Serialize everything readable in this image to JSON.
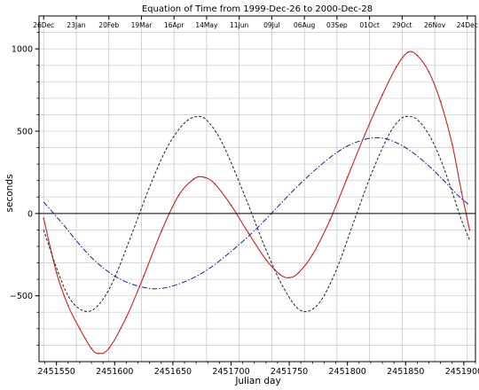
{
  "chart_data": {
    "type": "line",
    "title": "Equation of Time from 1999-Dec-26 to 2000-Dec-28",
    "xlabel": "Julian day",
    "ylabel": "seconds",
    "xlim": [
      2451535,
      2451910
    ],
    "ylim": [
      -900,
      1200
    ],
    "grid": true,
    "x_ticks": [
      2451550,
      2451600,
      2451650,
      2451700,
      2451750,
      2451800,
      2451850,
      2451900
    ],
    "x_tick_labels": [
      "2451550",
      "2451600",
      "2451650",
      "2451700",
      "2451750",
      "2451800",
      "2451850",
      "2451900"
    ],
    "y_ticks": [
      -500,
      0,
      500,
      1000
    ],
    "y_tick_labels": [
      "−500",
      "0",
      "500",
      "1000"
    ],
    "top_date_ticks": [
      {
        "x": 2451539,
        "label": "26Dec"
      },
      {
        "x": 2451567,
        "label": "23Jan"
      },
      {
        "x": 2451595,
        "label": "20Feb"
      },
      {
        "x": 2451623,
        "label": "19Mar"
      },
      {
        "x": 2451651,
        "label": "16Apr"
      },
      {
        "x": 2451679,
        "label": "14May"
      },
      {
        "x": 2451707,
        "label": "11Jun"
      },
      {
        "x": 2451735,
        "label": "09Jul"
      },
      {
        "x": 2451763,
        "label": "06Aug"
      },
      {
        "x": 2451791,
        "label": "03Sep"
      },
      {
        "x": 2451819,
        "label": "01Oct"
      },
      {
        "x": 2451847,
        "label": "29Oct"
      },
      {
        "x": 2451875,
        "label": "26Nov"
      },
      {
        "x": 2451903,
        "label": "24Dec"
      }
    ],
    "series": [
      {
        "color": "#cc2222",
        "style": "solid",
        "x": [
          2451539,
          2451550,
          2451560,
          2451570,
          2451580,
          2451586,
          2451595,
          2451610,
          2451625,
          2451640,
          2451655,
          2451668,
          2451677,
          2451686,
          2451700,
          2451715,
          2451730,
          2451742,
          2451750,
          2451758,
          2451770,
          2451785,
          2451800,
          2451815,
          2451830,
          2451842,
          2451852,
          2451860,
          2451870,
          2451880,
          2451890,
          2451898,
          2451905
        ],
        "y": [
          -30,
          -360,
          -560,
          -700,
          -820,
          -850,
          -820,
          -630,
          -380,
          -110,
          110,
          210,
          220,
          180,
          50,
          -120,
          -280,
          -370,
          -390,
          -360,
          -250,
          -40,
          220,
          480,
          720,
          890,
          980,
          960,
          860,
          680,
          420,
          130,
          -100
        ]
      },
      {
        "color": "#333333",
        "style": "dashed",
        "x": [
          2451539,
          2451550,
          2451560,
          2451570,
          2451580,
          2451590,
          2451600,
          2451615,
          2451630,
          2451645,
          2451660,
          2451672,
          2451680,
          2451690,
          2451700,
          2451715,
          2451730,
          2451745,
          2451760,
          2451775,
          2451790,
          2451805,
          2451820,
          2451835,
          2451845,
          2451852,
          2451860,
          2451870,
          2451880,
          2451890,
          2451898,
          2451905
        ],
        "y": [
          -100,
          -330,
          -500,
          -580,
          -590,
          -520,
          -390,
          -120,
          160,
          400,
          550,
          590,
          560,
          460,
          310,
          50,
          -220,
          -450,
          -590,
          -550,
          -350,
          -60,
          230,
          470,
          570,
          590,
          570,
          480,
          330,
          130,
          -40,
          -160
        ]
      },
      {
        "color": "#2233aa",
        "style": "dashdot",
        "x": [
          2451539,
          2451555,
          2451570,
          2451585,
          2451600,
          2451615,
          2451630,
          2451640,
          2451650,
          2451665,
          2451680,
          2451695,
          2451710,
          2451725,
          2451740,
          2451755,
          2451770,
          2451785,
          2451800,
          2451815,
          2451825,
          2451835,
          2451850,
          2451865,
          2451880,
          2451895,
          2451905
        ],
        "y": [
          70,
          -60,
          -190,
          -300,
          -380,
          -430,
          -455,
          -455,
          -440,
          -400,
          -340,
          -260,
          -170,
          -70,
          40,
          150,
          250,
          340,
          410,
          450,
          460,
          450,
          400,
          320,
          220,
          110,
          50
        ]
      }
    ]
  }
}
